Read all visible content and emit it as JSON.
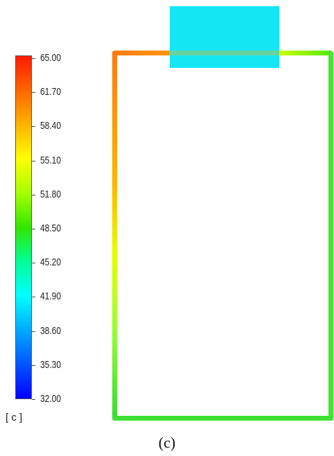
{
  "legend": {
    "ticks": [
      "65.00",
      "61.70",
      "58.40",
      "55.10",
      "51.80",
      "48.50",
      "45.20",
      "41.90",
      "38.60",
      "35.30",
      "32.00"
    ],
    "unit": "[ c ]",
    "colors": [
      "#ff1a00",
      "#ff6600",
      "#ffb300",
      "#ffff00",
      "#a6ff00",
      "#33e600",
      "#00ff99",
      "#00ffff",
      "#00aaff",
      "#0055ff",
      "#0000ff"
    ]
  },
  "caption": "(c)",
  "colors": {
    "pipe_hot": "#ff8c1a",
    "pipe_warm": "#ffd000",
    "pipe_mid": "#ccff33",
    "pipe_cool": "#33dd33",
    "heat_block": "#14e6f5"
  }
}
